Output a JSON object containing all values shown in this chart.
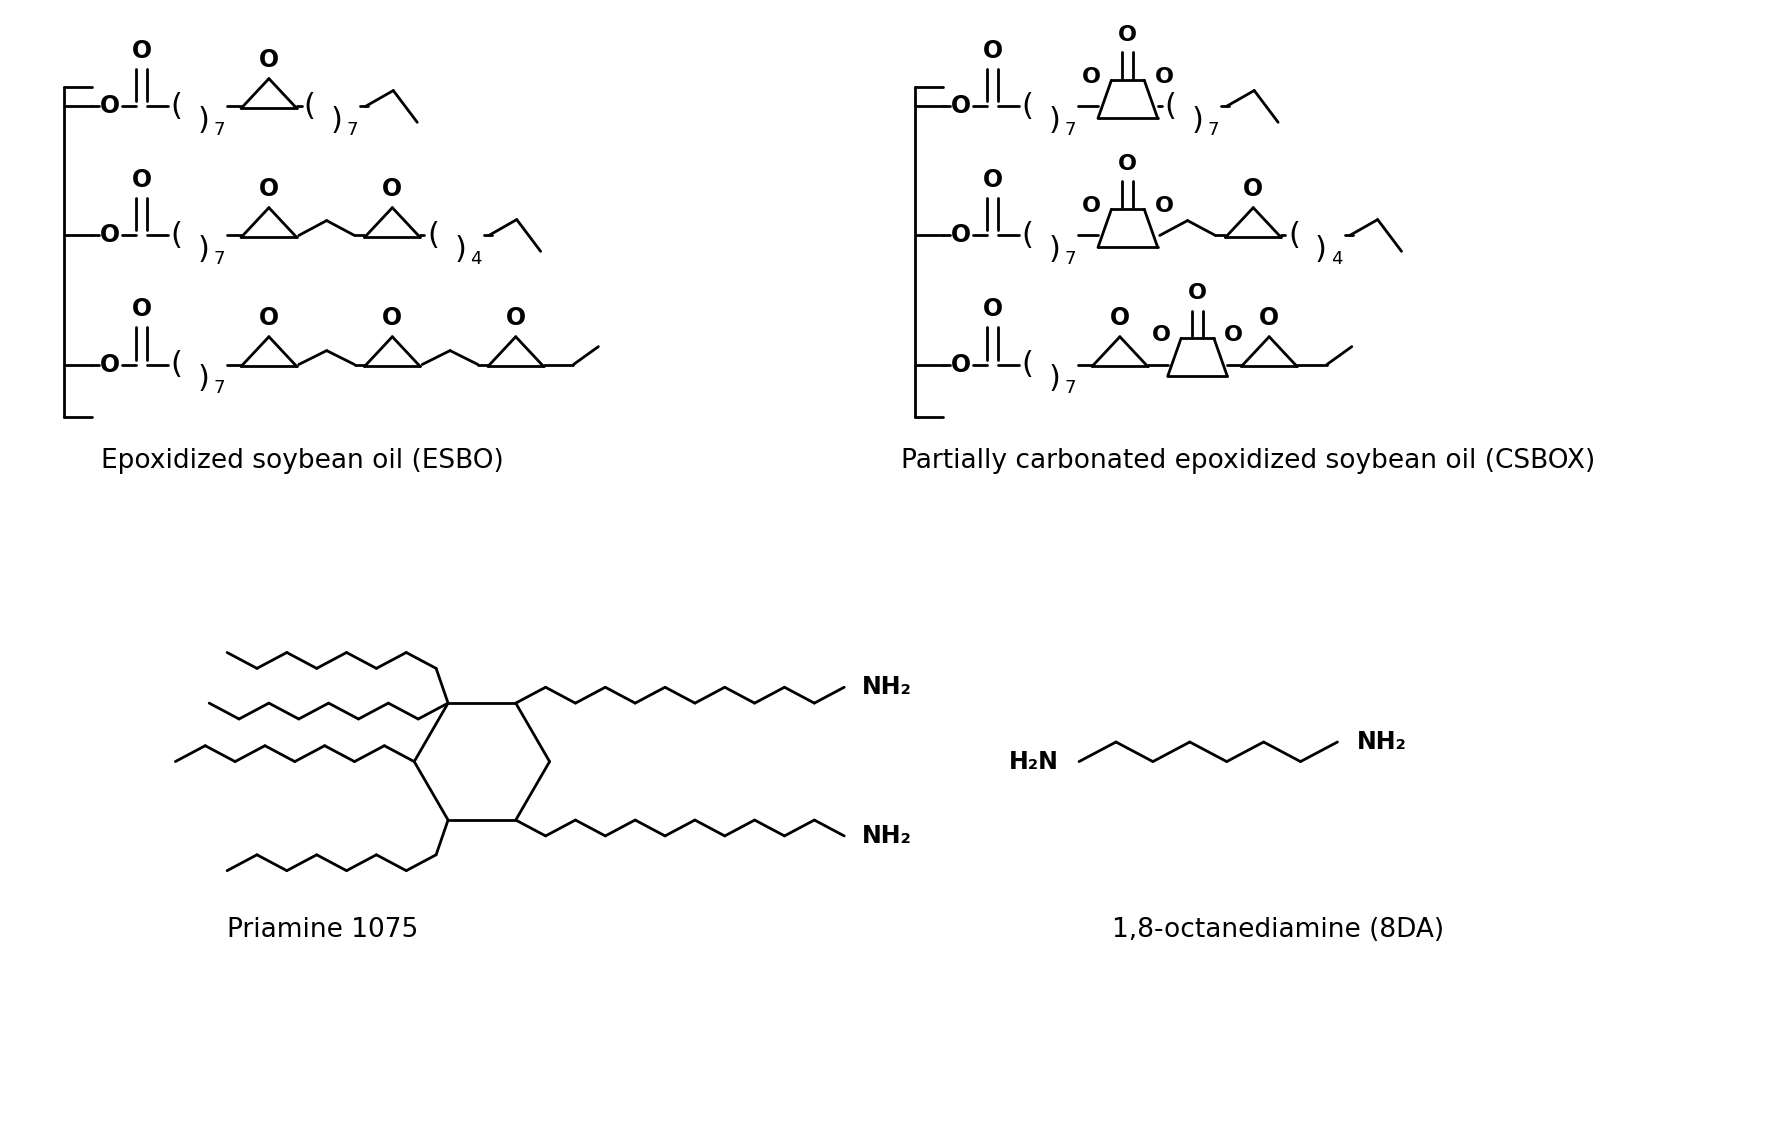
{
  "background_color": "#ffffff",
  "title_esbo": "Epoxidized soybean oil (ESBO)",
  "title_csbox": "Partially carbonated epoxidized soybean oil (CSBOX)",
  "title_priamine": "Priamine 1075",
  "title_8da": "1,8-octanediamine (8DA)",
  "line_color": "#000000",
  "line_width": 2.0,
  "font_size_label": 19,
  "font_size_atom": 17,
  "font_size_subscript": 13,
  "fig_width": 17.67,
  "fig_height": 11.38
}
